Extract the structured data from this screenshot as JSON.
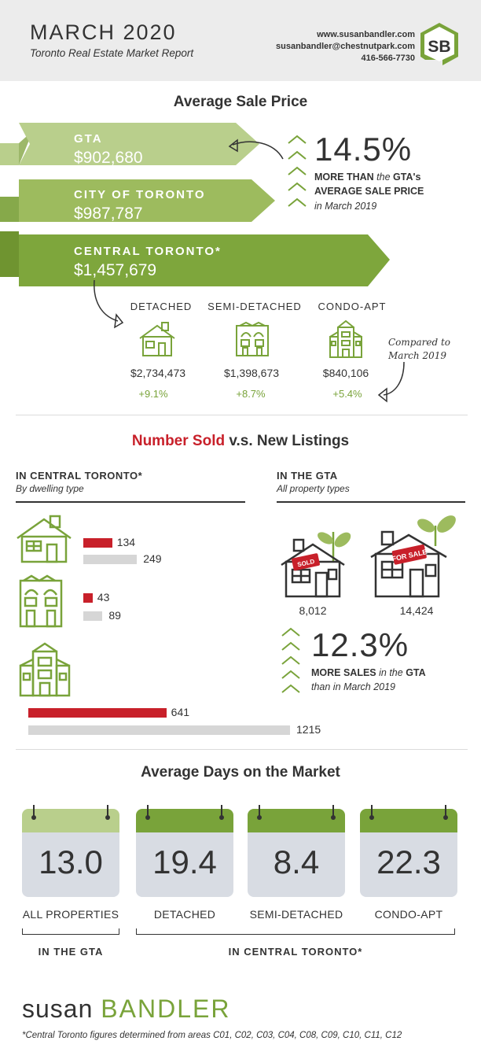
{
  "header": {
    "title": "MARCH 2020",
    "subtitle": "Toronto Real Estate Market Report",
    "website": "www.susanbandler.com",
    "email": "susanbandler@chestnutpark.com",
    "phone": "416-566-7730",
    "logo_text": "SB"
  },
  "avg_price": {
    "title": "Average Sale Price",
    "regions": [
      {
        "label": "GTA",
        "price": "$902,680"
      },
      {
        "label": "CITY OF TORONTO",
        "price": "$987,787"
      },
      {
        "label": "CENTRAL TORONTO*",
        "price": "$1,457,679"
      }
    ],
    "highlight": {
      "pct": "14.5%",
      "line1_a": "MORE THAN",
      "line1_b": " the ",
      "line1_c": "GTA's",
      "line2": "AVERAGE SALE PRICE",
      "line3": "in March 2019"
    },
    "types": [
      {
        "label": "DETACHED",
        "price": "$2,734,473",
        "change": "+9.1%"
      },
      {
        "label": "SEMI-DETACHED",
        "price": "$1,398,673",
        "change": "+8.7%"
      },
      {
        "label": "CONDO-APT",
        "price": "$840,106",
        "change": "+5.4%"
      }
    ],
    "compared_line1": "Compared to",
    "compared_line2": "March 2019"
  },
  "sold": {
    "title_a": "Number Sold",
    "title_b": " v.s. New Listings",
    "central_head": "IN CENTRAL TORONTO*",
    "central_sub": "By dwelling type",
    "gta_head": "IN THE GTA",
    "gta_sub": "All property types",
    "central_bars": [
      {
        "sold": 134,
        "listings": 249
      },
      {
        "sold": 43,
        "listings": 89
      },
      {
        "sold": 641,
        "listings": 1215
      }
    ],
    "gta_sold_tag": "SOLD",
    "gta_sale_tag": "FOR SALE",
    "gta_sold": "8,012",
    "gta_listings": "14,424",
    "highlight": {
      "pct": "12.3%",
      "line1_a": "MORE SALES",
      "line1_b": " in the ",
      "line1_c": "GTA",
      "line2": "than in March 2019"
    }
  },
  "dom": {
    "title": "Average Days on the Market",
    "items": [
      {
        "value": "13.0",
        "label": "ALL PROPERTIES"
      },
      {
        "value": "19.4",
        "label": "DETACHED"
      },
      {
        "value": "8.4",
        "label": "SEMI-DETACHED"
      },
      {
        "value": "22.3",
        "label": "CONDO-APT"
      }
    ],
    "gta_label": "IN THE GTA",
    "central_label": "IN CENTRAL TORONTO*"
  },
  "footer": {
    "name_a": "susan",
    "name_b": "BANDLER",
    "note": "*Central Toronto figures determined from areas C01, C02, C03, C04, C08, C09, C10, C11, C12"
  },
  "colors": {
    "green": "#79a33a",
    "light_green": "#b9cf8c",
    "red": "#c8202a",
    "grey_bar": "#d6d6d6"
  }
}
